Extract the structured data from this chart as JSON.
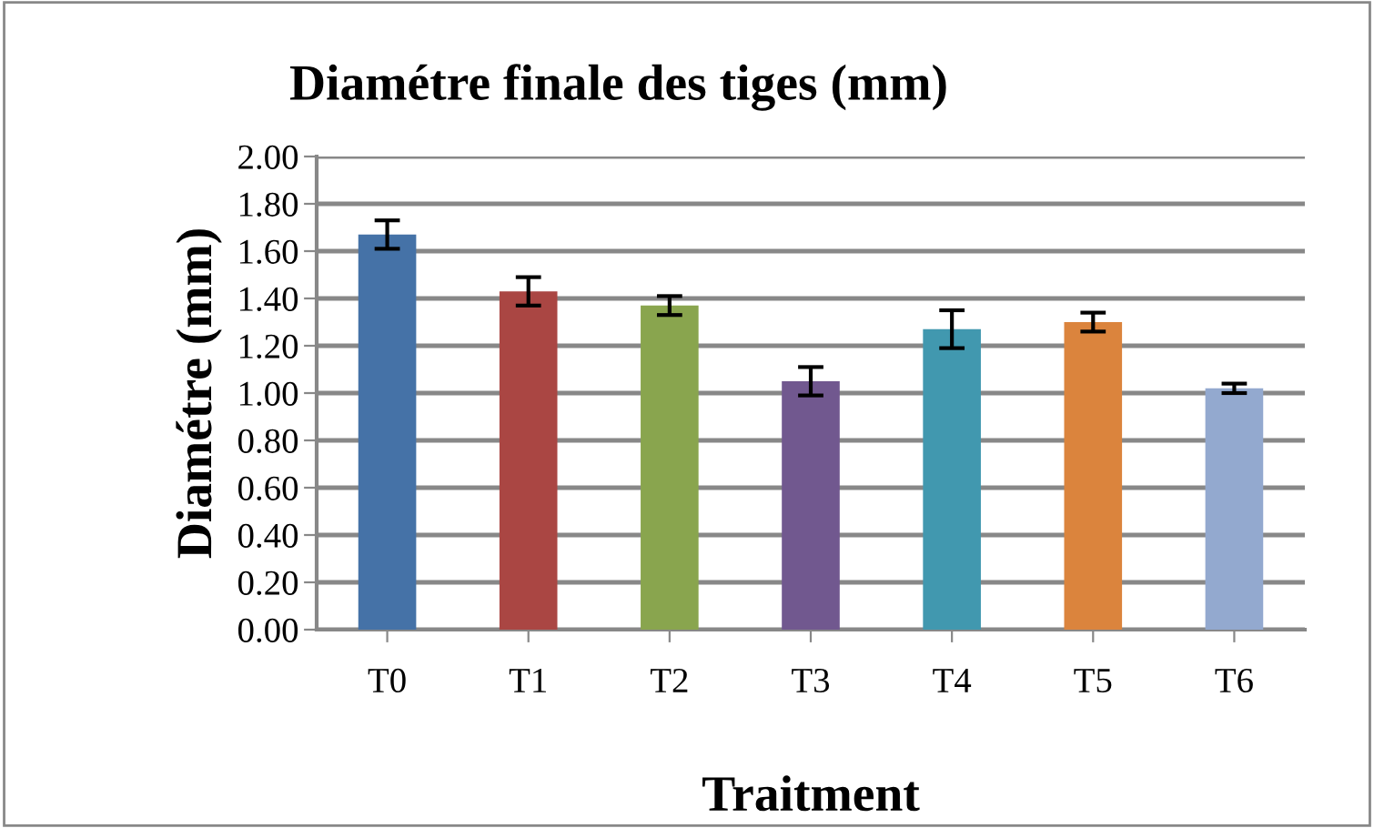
{
  "chart_data": {
    "type": "bar",
    "title": "Diamétre finale des tiges (mm)",
    "xlabel": "Traitment",
    "ylabel": "Diamétre (mm)",
    "categories": [
      "T0",
      "T1",
      "T2",
      "T3",
      "T4",
      "T5",
      "T6"
    ],
    "values": [
      1.67,
      1.43,
      1.37,
      1.05,
      1.27,
      1.3,
      1.02
    ],
    "errors": [
      0.06,
      0.06,
      0.04,
      0.06,
      0.08,
      0.04,
      0.02
    ],
    "colors": [
      "#4572a7",
      "#aa4643",
      "#89a54e",
      "#71588f",
      "#4198af",
      "#db843d",
      "#93a9cf"
    ],
    "ylim": [
      0,
      2
    ],
    "yticks": [
      {
        "value": 0,
        "label": "0.00"
      },
      {
        "value": 0.2,
        "label": "0.20"
      },
      {
        "value": 0.4,
        "label": "0.40"
      },
      {
        "value": 0.6,
        "label": "0.60"
      },
      {
        "value": 0.8,
        "label": "0.80"
      },
      {
        "value": 1.0,
        "label": "1.00"
      },
      {
        "value": 1.2,
        "label": "1.20"
      },
      {
        "value": 1.4,
        "label": "1.40"
      },
      {
        "value": 1.6,
        "label": "1.60"
      },
      {
        "value": 1.8,
        "label": "1.80"
      },
      {
        "value": 2.0,
        "label": "2.00"
      }
    ],
    "grid": "y"
  }
}
